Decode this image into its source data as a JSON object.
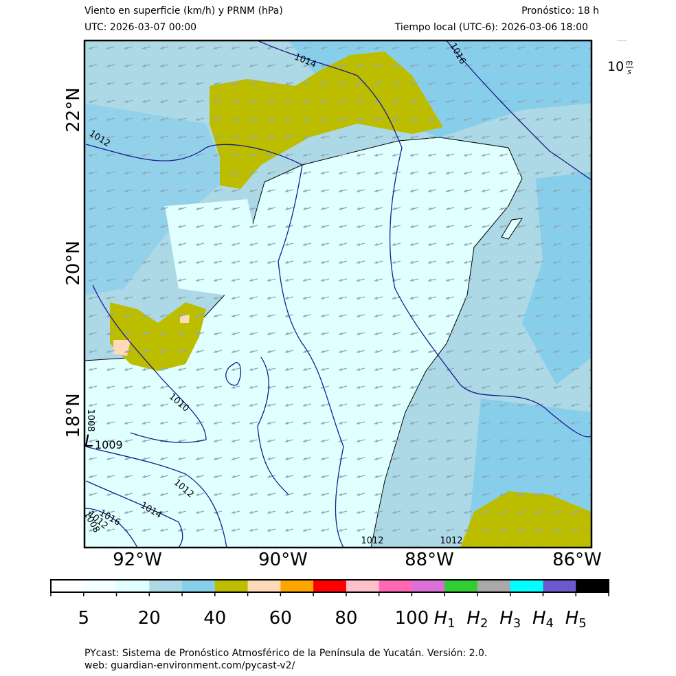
{
  "header": {
    "title": "Viento en superficie (km/h) y PRNM (hPa)",
    "forecast": "Pronóstico: 18 h",
    "utc": "UTC:  2026-03-07 00:00",
    "local": "Tiempo local (UTC-6): 2026-03-06 18:00"
  },
  "wind_scale": {
    "value": "10",
    "unit_num": "m",
    "unit_den": "s"
  },
  "map": {
    "lat_labels": [
      "22°N",
      "20°N",
      "18°N"
    ],
    "lon_labels": [
      "92°W",
      "90°W",
      "88°W",
      "86°W"
    ],
    "isobar_labels": [
      "1014",
      "1016",
      "1012",
      "1010",
      "1008",
      "1012",
      "1014",
      "1016",
      "1012",
      "1008",
      "1012",
      "1012"
    ],
    "low": {
      "symbol": "L",
      "value": "1009"
    }
  },
  "colorbar": {
    "colors": [
      "#ffffff",
      "#f4ffff",
      "#e0ffff",
      "#add8e6",
      "#87ceeb",
      "#bdbd00",
      "#ffdab9",
      "#ffa500",
      "#ff0000",
      "#ffc0cb",
      "#ff69b4",
      "#da70d6",
      "#32cd32",
      "#a9a9a9",
      "#00ffff",
      "#6a5acd",
      "#000000"
    ],
    "labels": [
      "5",
      "20",
      "40",
      "60",
      "80",
      "100"
    ],
    "hazard_labels": [
      {
        "base": "H",
        "sub": "1"
      },
      {
        "base": "H",
        "sub": "2"
      },
      {
        "base": "H",
        "sub": "3"
      },
      {
        "base": "H",
        "sub": "4"
      },
      {
        "base": "H",
        "sub": "5"
      }
    ]
  },
  "footer": {
    "line1": "PYcast: Sistema de Pronóstico Atmosférico de la Península de Yucatán. Versión: 2.0.",
    "line2": "web: guardian-environment.com/pycast-v2/"
  }
}
